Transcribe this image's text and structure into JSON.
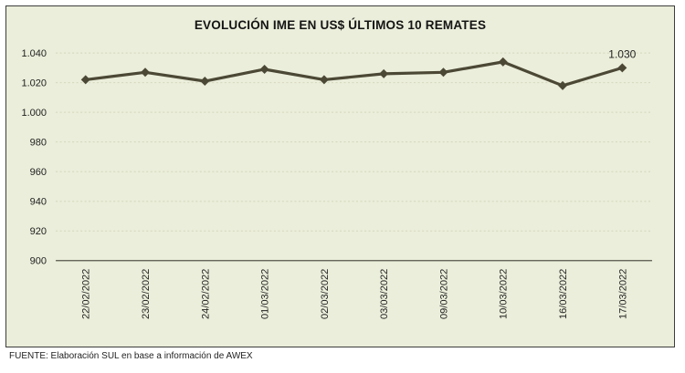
{
  "source_note": "FUENTE: Elaboración SUL en base a información de AWEX",
  "colors": {
    "plot_background": "#eaeeda",
    "box_border": "#3d3d3d",
    "line": "#4c4836",
    "marker": "#4c4836",
    "gridline": "#d6d6bc",
    "axis_line": "#55544a",
    "text": "#1f1f1f"
  },
  "chart_data": {
    "type": "line",
    "title": "EVOLUCIÓN IME EN US$ ÚLTIMOS 10 REMATES",
    "categories": [
      "22/02/2022",
      "23/02/2022",
      "24/02/2022",
      "01/03/2022",
      "02/03/2022",
      "03/03/2022",
      "09/03/2022",
      "10/03/2022",
      "16/03/2022",
      "17/03/2022"
    ],
    "values": [
      1022,
      1027,
      1021,
      1029,
      1022,
      1026,
      1027,
      1034,
      1018,
      1030
    ],
    "ylim": [
      900,
      1040
    ],
    "ytick_step": 20,
    "ytick_labels": [
      "900",
      "920",
      "940",
      "960",
      "980",
      "1.000",
      "1.020",
      "1.040"
    ],
    "last_point_label": "1.030",
    "marker": "diamond",
    "grid": "horizontal-dashed",
    "legend": "none",
    "x_label_rotation": -90
  }
}
